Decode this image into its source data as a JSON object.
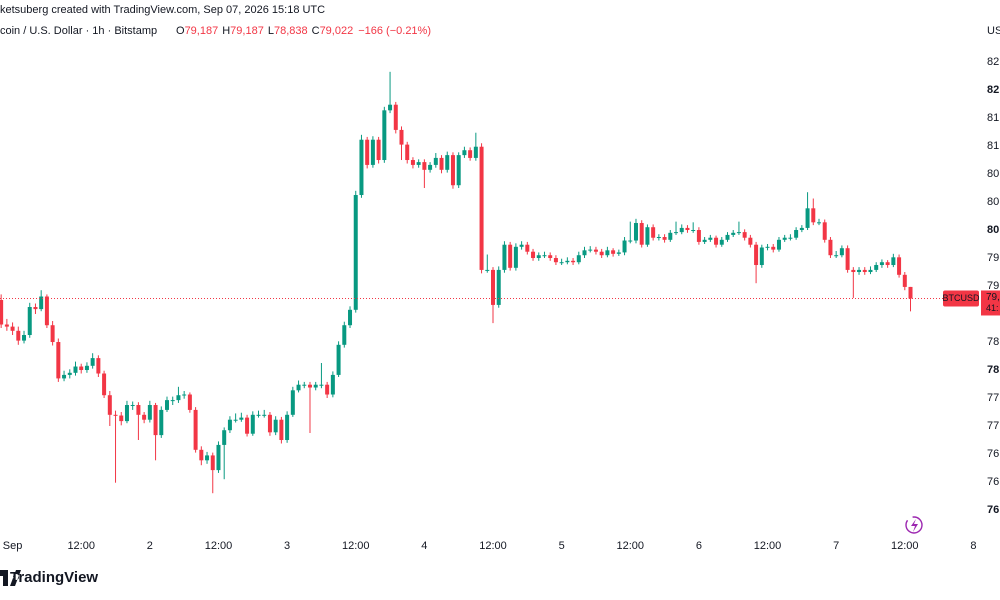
{
  "header": {
    "credit": "ketsuberg created with TradingView.com, Sep 07, 2026 15:18 UTC",
    "symbol": "coin / U.S. Dollar · 1h · Bitstamp",
    "ohlc": [
      {
        "key": "O",
        "value": "79,187"
      },
      {
        "key": "H",
        "value": "79,187"
      },
      {
        "key": "L",
        "value": "78,838"
      },
      {
        "key": "C",
        "value": "79,022"
      }
    ],
    "change": "−166 (−0.21%)",
    "currency": "US"
  },
  "price_tag": {
    "symbol": "BTCUSD",
    "price": "79,",
    "countdown": "41:"
  },
  "logo": "TradingView",
  "chart_data": {
    "type": "candlestick",
    "up_color": "#089981",
    "down_color": "#f23645",
    "xlim": [
      -0.2,
      170.8
    ],
    "ylim": [
      75643,
      83286
    ],
    "xticks": [
      {
        "value": 2,
        "label": "Sep"
      },
      {
        "value": 14,
        "label": "12:00"
      },
      {
        "value": 26,
        "label": "2"
      },
      {
        "value": 38,
        "label": "12:00"
      },
      {
        "value": 50,
        "label": "3"
      },
      {
        "value": 62,
        "label": "12:00"
      },
      {
        "value": 74,
        "label": "4"
      },
      {
        "value": 86,
        "label": "12:00"
      },
      {
        "value": 98,
        "label": "5"
      },
      {
        "value": 110,
        "label": "12:00"
      },
      {
        "value": 122,
        "label": "6"
      },
      {
        "value": 134,
        "label": "12:00"
      },
      {
        "value": 146,
        "label": "7"
      },
      {
        "value": 158,
        "label": "12:00"
      },
      {
        "value": 170,
        "label": "8"
      }
    ],
    "yticks": [
      {
        "value": 82400,
        "label": "82,"
      },
      {
        "value": 82000,
        "label": "82,"
      },
      {
        "value": 81600,
        "label": "81,"
      },
      {
        "value": 81200,
        "label": "81,"
      },
      {
        "value": 80800,
        "label": "80,"
      },
      {
        "value": 80400,
        "label": "80,"
      },
      {
        "value": 80000,
        "label": "80,"
      },
      {
        "value": 79600,
        "label": "79,"
      },
      {
        "value": 79200,
        "label": "79,"
      },
      {
        "value": 78400,
        "label": "78,"
      },
      {
        "value": 78000,
        "label": "78,"
      },
      {
        "value": 77600,
        "label": "77,"
      },
      {
        "value": 77200,
        "label": "77,"
      },
      {
        "value": 76800,
        "label": "76,"
      },
      {
        "value": 76400,
        "label": "76,"
      },
      {
        "value": 76000,
        "label": "76,"
      }
    ],
    "candles": [
      [
        79000,
        79080,
        78600,
        78650
      ],
      [
        78650,
        78730,
        78560,
        78620
      ],
      [
        78620,
        78680,
        78500,
        78560
      ],
      [
        78560,
        78620,
        78360,
        78420
      ],
      [
        78420,
        78560,
        78380,
        78500
      ],
      [
        78500,
        78960,
        78460,
        78900
      ],
      [
        78900,
        78950,
        78800,
        78870
      ],
      [
        78870,
        79140,
        78840,
        79050
      ],
      [
        79050,
        79080,
        78600,
        78640
      ],
      [
        78640,
        78700,
        78350,
        78400
      ],
      [
        78400,
        78450,
        77830,
        77880
      ],
      [
        77880,
        77990,
        77840,
        77930
      ],
      [
        77930,
        78010,
        77880,
        77960
      ],
      [
        77960,
        78120,
        77920,
        78050
      ],
      [
        78050,
        78090,
        77950,
        78000
      ],
      [
        78000,
        78110,
        77960,
        78060
      ],
      [
        78060,
        78240,
        78020,
        78170
      ],
      [
        78170,
        78210,
        77900,
        77950
      ],
      [
        77950,
        77990,
        77600,
        77640
      ],
      [
        77640,
        77700,
        77200,
        77360
      ],
      [
        77360,
        77420,
        76390,
        77350
      ],
      [
        77350,
        77400,
        77210,
        77270
      ],
      [
        77270,
        77560,
        77240,
        77500
      ],
      [
        77500,
        77550,
        77430,
        77500
      ],
      [
        77500,
        77540,
        77000,
        77360
      ],
      [
        77360,
        77400,
        77240,
        77290
      ],
      [
        77290,
        77560,
        77250,
        77500
      ],
      [
        77500,
        77530,
        76710,
        77070
      ],
      [
        77070,
        77480,
        77030,
        77430
      ],
      [
        77430,
        77620,
        77400,
        77570
      ],
      [
        77570,
        77620,
        77500,
        77570
      ],
      [
        77570,
        77760,
        77530,
        77640
      ],
      [
        77640,
        77700,
        77590,
        77650
      ],
      [
        77650,
        77680,
        77390,
        77430
      ],
      [
        77430,
        77470,
        76820,
        76860
      ],
      [
        76860,
        76910,
        76640,
        76710
      ],
      [
        76710,
        76830,
        76660,
        76780
      ],
      [
        76780,
        76820,
        76240,
        76570
      ],
      [
        76570,
        76980,
        76530,
        76930
      ],
      [
        76930,
        77180,
        76440,
        77140
      ],
      [
        77140,
        77340,
        77100,
        77290
      ],
      [
        77290,
        77380,
        77250,
        77290
      ],
      [
        77290,
        77390,
        77260,
        77320
      ],
      [
        77320,
        77360,
        77050,
        77090
      ],
      [
        77090,
        77410,
        77060,
        77360
      ],
      [
        77360,
        77420,
        77320,
        77360
      ],
      [
        77360,
        77430,
        77320,
        77360
      ],
      [
        77360,
        77400,
        77060,
        77110
      ],
      [
        77110,
        77340,
        77070,
        77290
      ],
      [
        77290,
        77330,
        76950,
        77000
      ],
      [
        77000,
        77410,
        76960,
        77360
      ],
      [
        77360,
        77760,
        77330,
        77710
      ],
      [
        77710,
        77850,
        77680,
        77790
      ],
      [
        77790,
        77830,
        77740,
        77790
      ],
      [
        77790,
        77830,
        77100,
        77750
      ],
      [
        77750,
        77830,
        77710,
        77790
      ],
      [
        77790,
        78100,
        77740,
        77790
      ],
      [
        77790,
        77830,
        77600,
        77650
      ],
      [
        77650,
        77980,
        77610,
        77930
      ],
      [
        77930,
        78410,
        77900,
        78360
      ],
      [
        78360,
        78690,
        78320,
        78640
      ],
      [
        78640,
        78910,
        78600,
        78860
      ],
      [
        78860,
        80560,
        78820,
        80500
      ],
      [
        80500,
        81360,
        80460,
        81290
      ],
      [
        81290,
        81330,
        80880,
        80930
      ],
      [
        80930,
        81340,
        80890,
        81290
      ],
      [
        81290,
        81330,
        80950,
        81000
      ],
      [
        81000,
        81760,
        80960,
        81710
      ],
      [
        81710,
        82260,
        81670,
        81790
      ],
      [
        81790,
        81830,
        81380,
        81430
      ],
      [
        81430,
        81480,
        81000,
        81220
      ],
      [
        81220,
        81260,
        80950,
        81000
      ],
      [
        81000,
        81040,
        80880,
        80930
      ],
      [
        80930,
        81010,
        80890,
        80970
      ],
      [
        80970,
        81010,
        80600,
        80860
      ],
      [
        80860,
        80970,
        80820,
        80930
      ],
      [
        80930,
        81100,
        80890,
        81030
      ],
      [
        81030,
        81070,
        80810,
        80860
      ],
      [
        80860,
        81120,
        80820,
        81070
      ],
      [
        81070,
        81110,
        80590,
        80640
      ],
      [
        80640,
        81110,
        80600,
        81070
      ],
      [
        81070,
        81190,
        81030,
        81140
      ],
      [
        81140,
        81180,
        80990,
        81030
      ],
      [
        81030,
        81390,
        80990,
        81190
      ],
      [
        81190,
        81240,
        79380,
        79430
      ],
      [
        79430,
        79650,
        79390,
        79430
      ],
      [
        79430,
        79470,
        78670,
        78930
      ],
      [
        78930,
        79480,
        78890,
        79430
      ],
      [
        79430,
        79840,
        79390,
        79790
      ],
      [
        79790,
        79830,
        79420,
        79460
      ],
      [
        79460,
        79810,
        79420,
        79760
      ],
      [
        79760,
        79840,
        79720,
        79790
      ],
      [
        79790,
        79830,
        79650,
        79690
      ],
      [
        79690,
        79730,
        79560,
        79600
      ],
      [
        79600,
        79680,
        79560,
        79640
      ],
      [
        79640,
        79690,
        79600,
        79640
      ],
      [
        79640,
        79680,
        79560,
        79600
      ],
      [
        79600,
        79640,
        79500,
        79540
      ],
      [
        79540,
        79590,
        79500,
        79540
      ],
      [
        79540,
        79610,
        79510,
        79560
      ],
      [
        79560,
        79600,
        79500,
        79540
      ],
      [
        79540,
        79690,
        79510,
        79640
      ],
      [
        79640,
        79760,
        79600,
        79710
      ],
      [
        79710,
        79770,
        79680,
        79720
      ],
      [
        79720,
        79760,
        79650,
        79690
      ],
      [
        79690,
        79730,
        79600,
        79640
      ],
      [
        79640,
        79760,
        79610,
        79710
      ],
      [
        79710,
        79740,
        79620,
        79660
      ],
      [
        79660,
        79720,
        79630,
        79680
      ],
      [
        79680,
        79900,
        79640,
        79850
      ],
      [
        79850,
        80120,
        79810,
        79850
      ],
      [
        79850,
        80160,
        79810,
        80100
      ],
      [
        80100,
        80140,
        79750,
        79790
      ],
      [
        79790,
        80080,
        79760,
        80040
      ],
      [
        80040,
        80080,
        79850,
        79890
      ],
      [
        79890,
        79940,
        79850,
        79900
      ],
      [
        79900,
        79940,
        79820,
        79860
      ],
      [
        79860,
        80000,
        79830,
        79960
      ],
      [
        79960,
        80120,
        79930,
        79970
      ],
      [
        79970,
        80080,
        79940,
        80030
      ],
      [
        80030,
        80070,
        79960,
        80000
      ],
      [
        80000,
        80110,
        79960,
        80000
      ],
      [
        80000,
        80040,
        79790,
        79830
      ],
      [
        79830,
        79900,
        79800,
        79860
      ],
      [
        79860,
        79930,
        79830,
        79890
      ],
      [
        79890,
        79920,
        79750,
        79790
      ],
      [
        79790,
        79900,
        79760,
        79860
      ],
      [
        79860,
        79970,
        79830,
        79930
      ],
      [
        79930,
        80000,
        79900,
        79960
      ],
      [
        79960,
        80120,
        79930,
        79970
      ],
      [
        79970,
        80010,
        79850,
        79890
      ],
      [
        79890,
        79930,
        79750,
        79790
      ],
      [
        79790,
        79830,
        79240,
        79500
      ],
      [
        79500,
        79790,
        79460,
        79750
      ],
      [
        79750,
        79800,
        79710,
        79760
      ],
      [
        79760,
        79800,
        79680,
        79720
      ],
      [
        79720,
        79900,
        79690,
        79860
      ],
      [
        79860,
        79930,
        79830,
        79890
      ],
      [
        79890,
        79940,
        79850,
        79890
      ],
      [
        79890,
        80040,
        79860,
        80000
      ],
      [
        80000,
        80070,
        79970,
        80030
      ],
      [
        80030,
        80540,
        80000,
        80310
      ],
      [
        80310,
        80450,
        80070,
        80110
      ],
      [
        80110,
        80160,
        80070,
        80110
      ],
      [
        80110,
        80150,
        79820,
        79860
      ],
      [
        79860,
        79900,
        79600,
        79640
      ],
      [
        79640,
        79700,
        79600,
        79640
      ],
      [
        79640,
        79780,
        79610,
        79740
      ],
      [
        79740,
        79780,
        79390,
        79430
      ],
      [
        79430,
        79470,
        79030,
        79400
      ],
      [
        79400,
        79470,
        79360,
        79430
      ],
      [
        79430,
        79470,
        79360,
        79400
      ],
      [
        79400,
        79480,
        79370,
        79430
      ],
      [
        79430,
        79540,
        79400,
        79500
      ],
      [
        79500,
        79580,
        79460,
        79540
      ],
      [
        79540,
        79570,
        79460,
        79500
      ],
      [
        79500,
        79660,
        79470,
        79610
      ],
      [
        79610,
        79650,
        79320,
        79360
      ],
      [
        79360,
        79400,
        79140,
        79187
      ],
      [
        79187,
        79187,
        78838,
        79022
      ]
    ]
  }
}
